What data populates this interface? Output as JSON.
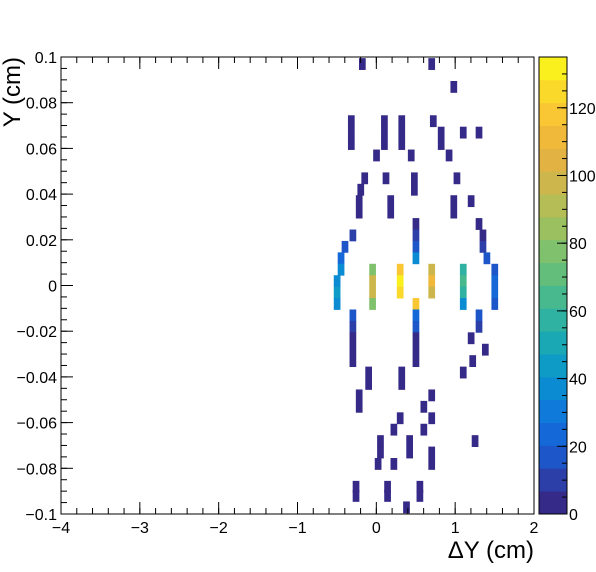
{
  "chart_data": {
    "type": "heatmap",
    "title": "",
    "xlabel": "ΔY (cm)",
    "ylabel": "Y (cm)",
    "xlim": [
      -4,
      2
    ],
    "ylim": [
      -0.1,
      0.1
    ],
    "x_ticks": [
      "−4",
      "−3",
      "−2",
      "−1",
      "0",
      "1",
      "2"
    ],
    "y_ticks": [
      "−0.1",
      "−0.08",
      "−0.06",
      "−0.04",
      "−0.02",
      "0",
      "0.02",
      "0.04",
      "0.06",
      "0.08",
      "0.1"
    ],
    "colorbar": {
      "min": 0,
      "max": 135,
      "ticks": [
        "0",
        "20",
        "40",
        "60",
        "80",
        "100",
        "120"
      ],
      "palette": [
        "#352a87",
        "#2c3fa8",
        "#1c56c8",
        "#1468d8",
        "#0f7ad9",
        "#0b8bd2",
        "#0e9bc6",
        "#1aa8b5",
        "#2fb2a2",
        "#48b98e",
        "#63be7c",
        "#7fc16d",
        "#9ac060",
        "#b5bd56",
        "#cdb74d",
        "#e2b343",
        "#f1b93a",
        "#f9c733",
        "#fad92b",
        "#f9f01e"
      ]
    },
    "bin_size": {
      "dx": 0.08,
      "dy": 0.005
    },
    "cells": [
      [
        -0.18,
        0.097,
        3
      ],
      [
        0.7,
        0.097,
        3
      ],
      [
        0.98,
        0.087,
        4
      ],
      [
        -0.32,
        0.072,
        3
      ],
      [
        0.1,
        0.072,
        3
      ],
      [
        0.32,
        0.072,
        3
      ],
      [
        0.72,
        0.072,
        4
      ],
      [
        -0.32,
        0.067,
        3
      ],
      [
        0.1,
        0.067,
        3
      ],
      [
        0.32,
        0.067,
        3
      ],
      [
        0.82,
        0.067,
        3
      ],
      [
        1.1,
        0.067,
        3
      ],
      [
        1.3,
        0.067,
        3
      ],
      [
        -0.32,
        0.062,
        3
      ],
      [
        0.1,
        0.062,
        3
      ],
      [
        0.32,
        0.062,
        3
      ],
      [
        0.82,
        0.062,
        3
      ],
      [
        0,
        0.057,
        3
      ],
      [
        0.44,
        0.057,
        4
      ],
      [
        0.92,
        0.057,
        3
      ],
      [
        -0.15,
        0.047,
        4
      ],
      [
        0.12,
        0.047,
        3
      ],
      [
        0.48,
        0.047,
        4
      ],
      [
        1.02,
        0.047,
        3
      ],
      [
        -0.2,
        0.042,
        4
      ],
      [
        0.48,
        0.042,
        4
      ],
      [
        -0.22,
        0.037,
        3
      ],
      [
        0.18,
        0.037,
        4
      ],
      [
        0.98,
        0.037,
        3
      ],
      [
        1.2,
        0.037,
        3
      ],
      [
        -0.22,
        0.032,
        3
      ],
      [
        0.18,
        0.032,
        4
      ],
      [
        0.98,
        0.032,
        3
      ],
      [
        0.5,
        0.027,
        4
      ],
      [
        1.3,
        0.027,
        4
      ],
      [
        -0.3,
        0.022,
        8
      ],
      [
        0.5,
        0.022,
        8
      ],
      [
        1.35,
        0.022,
        5
      ],
      [
        -0.4,
        0.017,
        14
      ],
      [
        0.5,
        0.017,
        20
      ],
      [
        1.35,
        0.017,
        12
      ],
      [
        -0.45,
        0.012,
        22
      ],
      [
        0.5,
        0.012,
        35
      ],
      [
        1.4,
        0.012,
        20
      ],
      [
        -0.45,
        0.007,
        35
      ],
      [
        -0.05,
        0.007,
        80
      ],
      [
        0.3,
        0.007,
        120
      ],
      [
        0.7,
        0.007,
        95
      ],
      [
        1.1,
        0.007,
        60
      ],
      [
        1.5,
        0.007,
        20
      ],
      [
        -0.5,
        0.002,
        40
      ],
      [
        -0.05,
        0.002,
        95
      ],
      [
        0.3,
        0.002,
        130
      ],
      [
        0.7,
        0.002,
        110
      ],
      [
        1.1,
        0.002,
        65
      ],
      [
        1.5,
        0.002,
        25
      ],
      [
        -0.5,
        -0.003,
        45
      ],
      [
        -0.05,
        -0.003,
        100
      ],
      [
        0.3,
        -0.003,
        125
      ],
      [
        0.7,
        -0.003,
        100
      ],
      [
        1.1,
        -0.003,
        55
      ],
      [
        1.5,
        -0.003,
        25
      ],
      [
        -0.5,
        -0.008,
        35
      ],
      [
        -0.05,
        -0.008,
        75
      ],
      [
        0.5,
        -0.008,
        115
      ],
      [
        1.1,
        -0.008,
        40
      ],
      [
        1.5,
        -0.008,
        15
      ],
      [
        -0.3,
        -0.013,
        15
      ],
      [
        0.5,
        -0.013,
        25
      ],
      [
        1.3,
        -0.013,
        15
      ],
      [
        -0.3,
        -0.018,
        12
      ],
      [
        0.5,
        -0.018,
        18
      ],
      [
        1.3,
        -0.018,
        10
      ],
      [
        -0.3,
        -0.023,
        5
      ],
      [
        0.5,
        -0.023,
        6
      ],
      [
        1.2,
        -0.023,
        4
      ],
      [
        -0.3,
        -0.028,
        4
      ],
      [
        0.5,
        -0.028,
        4
      ],
      [
        1.38,
        -0.028,
        3
      ],
      [
        -0.3,
        -0.033,
        4
      ],
      [
        0.5,
        -0.033,
        4
      ],
      [
        1.22,
        -0.033,
        3
      ],
      [
        -0.1,
        -0.038,
        4
      ],
      [
        0.32,
        -0.038,
        4
      ],
      [
        1.1,
        -0.038,
        3
      ],
      [
        -0.1,
        -0.043,
        4
      ],
      [
        0.32,
        -0.043,
        4
      ],
      [
        -0.22,
        -0.048,
        3
      ],
      [
        0.7,
        -0.048,
        3
      ],
      [
        -0.22,
        -0.053,
        3
      ],
      [
        0.6,
        -0.053,
        4
      ],
      [
        0.3,
        -0.058,
        3
      ],
      [
        0.7,
        -0.058,
        4
      ],
      [
        0.22,
        -0.063,
        3
      ],
      [
        0.6,
        -0.063,
        4
      ],
      [
        0.05,
        -0.068,
        3
      ],
      [
        0.42,
        -0.068,
        3
      ],
      [
        1.25,
        -0.068,
        3
      ],
      [
        0.05,
        -0.073,
        3
      ],
      [
        0.42,
        -0.073,
        3
      ],
      [
        0.7,
        -0.073,
        3
      ],
      [
        0.02,
        -0.078,
        3
      ],
      [
        0.22,
        -0.078,
        3
      ],
      [
        0.7,
        -0.078,
        3
      ],
      [
        -0.26,
        -0.088,
        3
      ],
      [
        0.14,
        -0.088,
        3
      ],
      [
        0.55,
        -0.088,
        3
      ],
      [
        -0.26,
        -0.092,
        3
      ],
      [
        0.14,
        -0.092,
        3
      ],
      [
        0.55,
        -0.092,
        3
      ],
      [
        0.38,
        -0.097,
        3
      ]
    ]
  }
}
